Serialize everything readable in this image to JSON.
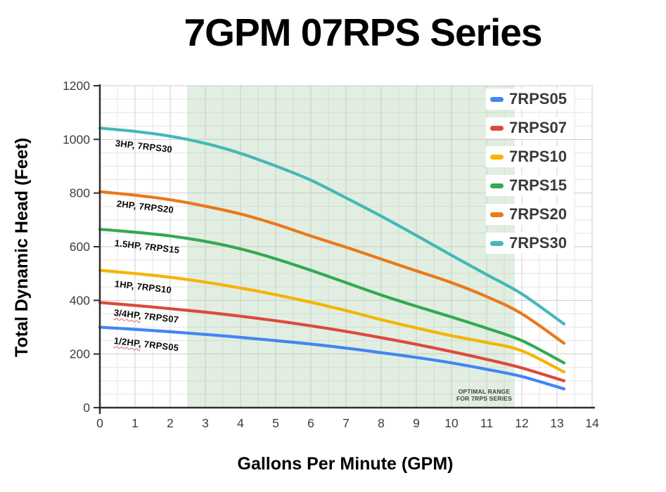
{
  "title": "7GPM 07RPS Series",
  "optimal_band": {
    "from_gpm": 2.5,
    "to_gpm": 11.8,
    "fill": "rgba(175,210,175,0.38)",
    "label_line1": "OPTIMAL RANGE",
    "label_line2": "FOR 7RPS SERIES"
  },
  "axes": {
    "x_tick_labels": [
      "0",
      "1",
      "2",
      "3",
      "4",
      "5",
      "6",
      "7",
      "8",
      "9",
      "10",
      "11",
      "12",
      "13",
      "14"
    ],
    "y_tick_labels": [
      "0",
      "200",
      "400",
      "600",
      "800",
      "1000",
      "1200"
    ]
  },
  "chart_data": {
    "type": "line",
    "title": "7GPM 07RPS Series",
    "xlabel": "Gallons Per Minute (GPM)",
    "ylabel": "Total Dynamic Head (Feet)",
    "xlim": [
      0,
      14
    ],
    "ylim": [
      0,
      1200
    ],
    "x_major_step": 1,
    "x_minor_step": 0.5,
    "y_major_step": 200,
    "y_minor_step": 50,
    "grid": true,
    "legend_position": "top-right",
    "x_gpm": [
      0,
      1,
      2,
      3,
      4,
      5,
      6,
      7,
      8,
      9,
      10,
      11,
      12,
      13.2
    ],
    "series": [
      {
        "name": "7RPS05",
        "power": "1/2HP",
        "color": "#4285F4",
        "curve_label": "1/2HP, 7RPS05",
        "spellcheck_prefix": "1/2HP,",
        "values_ft": [
          300,
          292,
          283,
          273,
          262,
          250,
          237,
          222,
          205,
          187,
          167,
          143,
          116,
          70
        ]
      },
      {
        "name": "7RPS07",
        "power": "3/4HP",
        "color": "#DB4A3D",
        "curve_label": "3/4HP, 7RPS07",
        "spellcheck_prefix": "3/4HP,",
        "values_ft": [
          392,
          381,
          369,
          356,
          341,
          324,
          305,
          284,
          261,
          236,
          209,
          180,
          148,
          100
        ]
      },
      {
        "name": "7RPS10",
        "power": "1HP",
        "color": "#F4B400",
        "curve_label": "1HP, 7RPS10",
        "spellcheck_prefix": null,
        "values_ft": [
          512,
          500,
          486,
          468,
          446,
          421,
          393,
          362,
          328,
          297,
          268,
          243,
          212,
          133
        ]
      },
      {
        "name": "7RPS15",
        "power": "1.5HP",
        "color": "#34A853",
        "curve_label": "1.5HP, 7RPS15",
        "spellcheck_prefix": null,
        "values_ft": [
          665,
          654,
          640,
          620,
          592,
          555,
          512,
          466,
          420,
          378,
          338,
          296,
          250,
          167
        ]
      },
      {
        "name": "7RPS20",
        "power": "2HP",
        "color": "#EB7819",
        "curve_label": "2HP, 7RPS20",
        "spellcheck_prefix": null,
        "values_ft": [
          805,
          792,
          775,
          751,
          722,
          684,
          640,
          598,
          554,
          510,
          466,
          414,
          350,
          240
        ]
      },
      {
        "name": "7RPS30",
        "power": "3HP",
        "color": "#44B8B8",
        "curve_label": "3HP, 7RPS30",
        "spellcheck_prefix": null,
        "values_ft": [
          1042,
          1030,
          1012,
          985,
          948,
          901,
          848,
          782,
          714,
          642,
          568,
          496,
          424,
          312
        ]
      }
    ]
  }
}
